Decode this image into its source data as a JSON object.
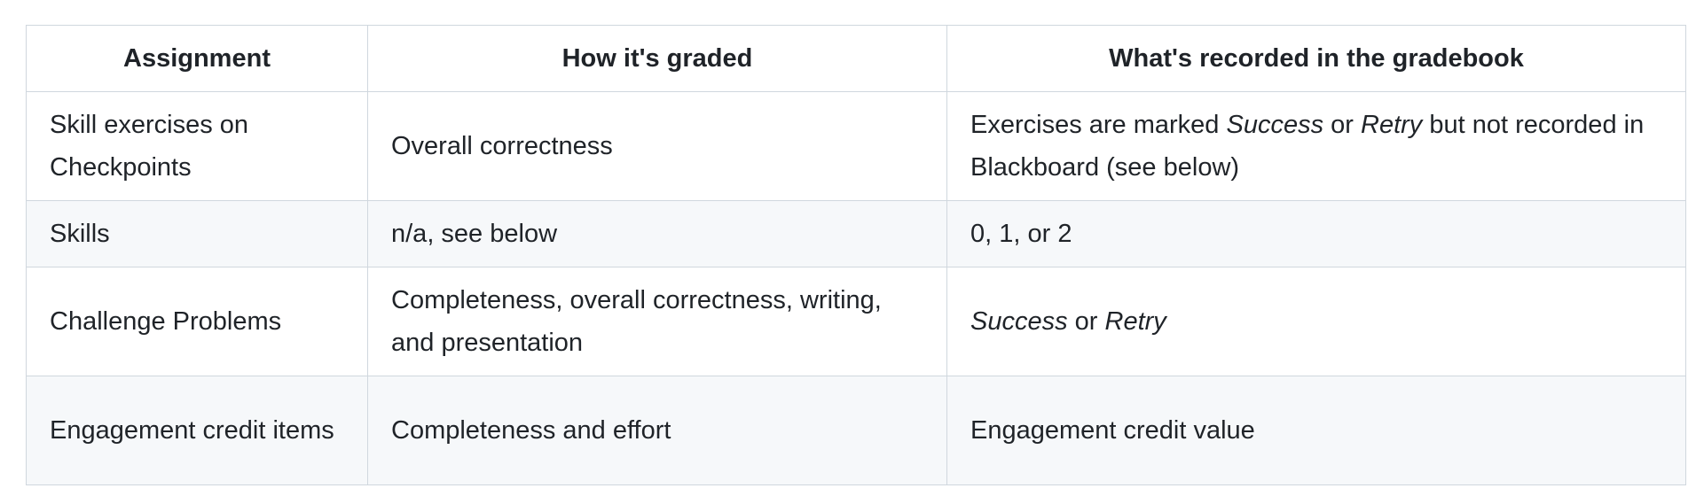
{
  "table": {
    "headers": [
      "Assignment",
      "How it's graded",
      "What's recorded in the gradebook"
    ],
    "rows": [
      {
        "assignment": "Skill exercises on Checkpoints",
        "graded": "Overall correctness",
        "recorded": {
          "prefix": "Exercises are marked ",
          "em1": "Success",
          "mid": " or ",
          "em2": "Retry",
          "suffix": " but not recorded in Blackboard (see below)"
        }
      },
      {
        "assignment": "Skills",
        "graded": "n/a, see below",
        "recorded": "0, 1, or 2"
      },
      {
        "assignment": "Challenge Problems",
        "graded": "Completeness, overall correctness, writing, and presentation",
        "recorded": {
          "em1": "Success",
          "mid": " or ",
          "em2": "Retry"
        }
      },
      {
        "assignment": "Engagement credit items",
        "graded": "Completeness and effort",
        "recorded": "Engagement credit value"
      }
    ]
  }
}
